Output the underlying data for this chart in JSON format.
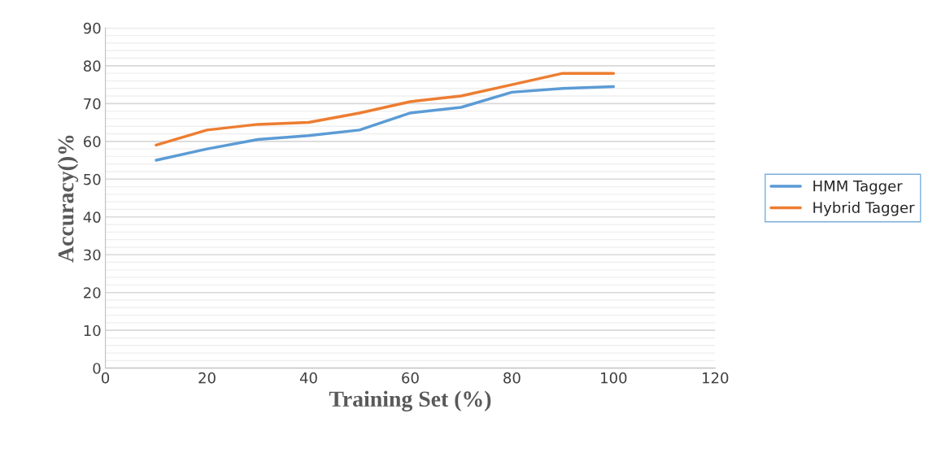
{
  "chart_data": {
    "type": "line",
    "xlabel": "Training Set (%)",
    "ylabel": "Accuracy()%",
    "x": [
      10,
      20,
      30,
      40,
      50,
      60,
      70,
      80,
      90,
      100
    ],
    "series": [
      {
        "name": "HMM Tagger",
        "color": "#5b9bd5",
        "values": [
          55,
          58,
          60.5,
          61.5,
          63,
          67.5,
          69,
          73,
          74,
          74.5
        ]
      },
      {
        "name": "Hybrid Tagger",
        "color": "#ed7d31",
        "values": [
          59,
          63,
          64.5,
          65,
          67.5,
          70.5,
          72,
          75,
          78,
          78
        ]
      }
    ],
    "xlim": [
      0,
      120
    ],
    "xticks": [
      0,
      20,
      40,
      60,
      80,
      100,
      120
    ],
    "ylim": [
      0,
      90
    ],
    "yticks": [
      0,
      10,
      20,
      30,
      40,
      50,
      60,
      70,
      80,
      90
    ],
    "grid": "y",
    "legend": "right",
    "marker": "none",
    "line_style": "solid"
  }
}
